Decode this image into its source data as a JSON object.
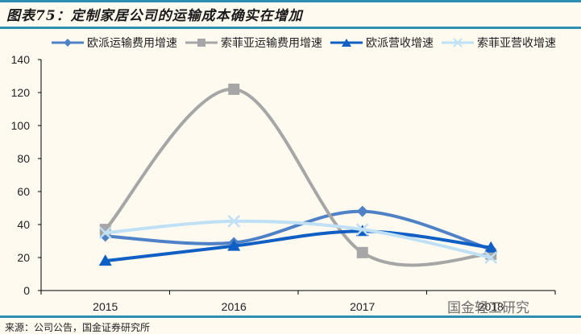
{
  "header": {
    "title": "图表75：定制家居公司的运输成本确实在增加"
  },
  "footer": {
    "source": "来源：公司公告，国金证券研究所",
    "watermark": "国金轻工研究"
  },
  "chart_data": {
    "type": "line",
    "title": "图表75：定制家居公司的运输成本确实在增加",
    "xlabel": "",
    "ylabel": "",
    "categories": [
      "2015",
      "2016",
      "2017",
      "2018"
    ],
    "ylim": [
      0,
      140
    ],
    "yticks": [
      0,
      20,
      40,
      60,
      80,
      100,
      120,
      140
    ],
    "grid": false,
    "legend_position": "top",
    "smooth": true,
    "series": [
      {
        "name": "欧派运输费用增速",
        "color": "#4f81c7",
        "marker": "diamond",
        "values": [
          33,
          29,
          48,
          25
        ]
      },
      {
        "name": "索菲亚运输费用增速",
        "color": "#a6a6a6",
        "marker": "square",
        "values": [
          37,
          122,
          23,
          22
        ]
      },
      {
        "name": "欧派营收增速",
        "color": "#0f5fc4",
        "marker": "triangle",
        "values": [
          18,
          27,
          36,
          26
        ]
      },
      {
        "name": "索菲亚营收增速",
        "color": "#bfe0f5",
        "marker": "x",
        "values": [
          35,
          42,
          37,
          20
        ]
      }
    ]
  }
}
